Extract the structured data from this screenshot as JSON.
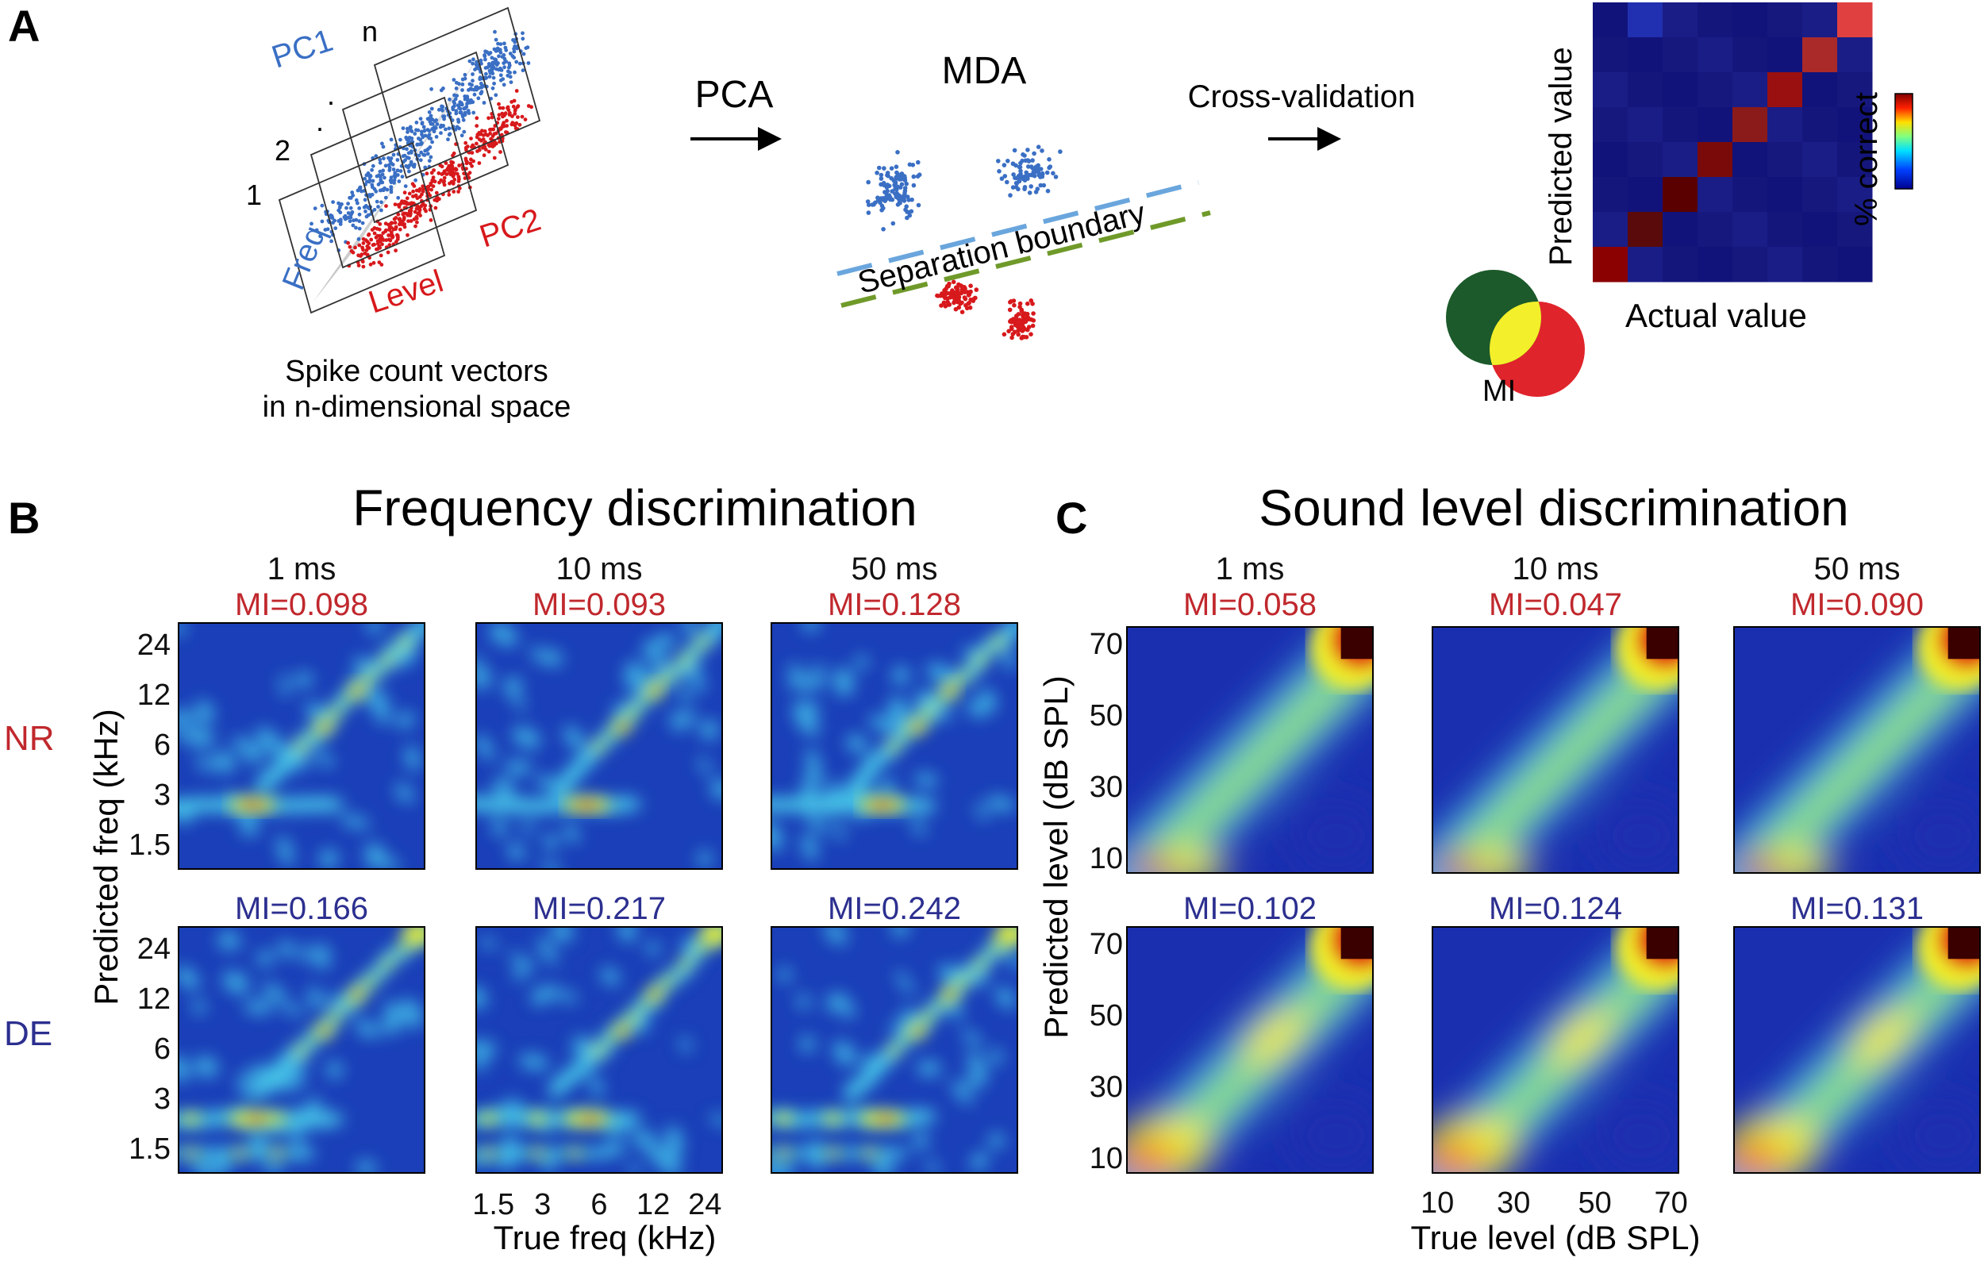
{
  "panel_a": {
    "letter": "A",
    "axis_pc1": "PC1",
    "axis_pc2": "PC2",
    "axis_freq": "Freq",
    "axis_level": "Level",
    "dim_labels": [
      "1",
      "2",
      ".",
      ".",
      "n"
    ],
    "caption_line1": "Spike count vectors",
    "caption_line2": "in n-dimensional space",
    "arrow1_label": "PCA",
    "mda_title": "MDA",
    "boundary_label": "Separation boundary",
    "arrow2_label": "Cross-validation",
    "confusion_ylabel": "Predicted value",
    "confusion_xlabel": "Actual value",
    "colorbar_label": "% correct",
    "venn_label": "MI",
    "colors": {
      "blue": "#3a6fc4",
      "red": "#d7191c",
      "dark_green": "#1c5a2b",
      "yellow": "#f3ef2a",
      "venn_red": "#e0242b"
    }
  },
  "panel_b": {
    "letter": "B",
    "title": "Frequency discrimination",
    "row_labels": [
      "NR",
      "DE"
    ],
    "y_axis_label": "Predicted freq (kHz)",
    "y_ticks": [
      "24",
      "12",
      "6",
      "3",
      "1.5"
    ],
    "x_axis_label": "True freq (kHz)",
    "x_ticks": [
      "1.5",
      "3",
      "6",
      "12",
      "24"
    ],
    "columns": [
      {
        "time": "1 ms",
        "mi_nr": "MI=0.098",
        "mi_de": "MI=0.166"
      },
      {
        "time": "10 ms",
        "mi_nr": "MI=0.093",
        "mi_de": "MI=0.217"
      },
      {
        "time": "50 ms",
        "mi_nr": "MI=0.128",
        "mi_de": "MI=0.242"
      }
    ]
  },
  "panel_c": {
    "letter": "C",
    "title": "Sound level discrimination",
    "y_axis_label": "Predicted level (dB SPL)",
    "y_ticks": [
      "70",
      "50",
      "30",
      "10"
    ],
    "x_axis_label": "True level (dB SPL)",
    "x_ticks": [
      "10",
      "30",
      "50",
      "70"
    ],
    "columns": [
      {
        "time": "1 ms",
        "mi_nr": "MI=0.058",
        "mi_de": "MI=0.102"
      },
      {
        "time": "10 ms",
        "mi_nr": "MI=0.047",
        "mi_de": "MI=0.124"
      },
      {
        "time": "50 ms",
        "mi_nr": "MI=0.090",
        "mi_de": "MI=0.131"
      }
    ]
  },
  "label_colors": {
    "nr": "#c0282d",
    "de": "#2c2f8f"
  }
}
